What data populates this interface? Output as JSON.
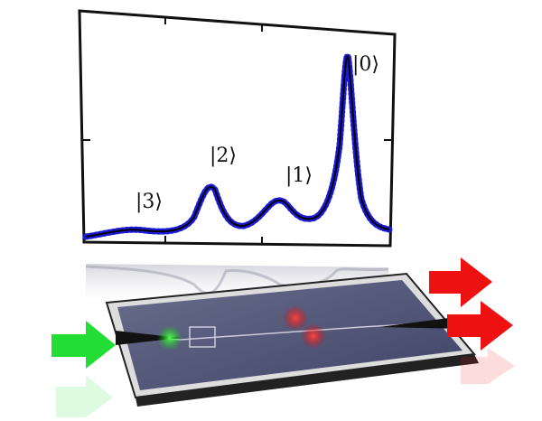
{
  "spectrum": {
    "peak_labels": [
      "|3⟩",
      "|2⟩",
      "|1⟩",
      "|0⟩"
    ]
  }
}
